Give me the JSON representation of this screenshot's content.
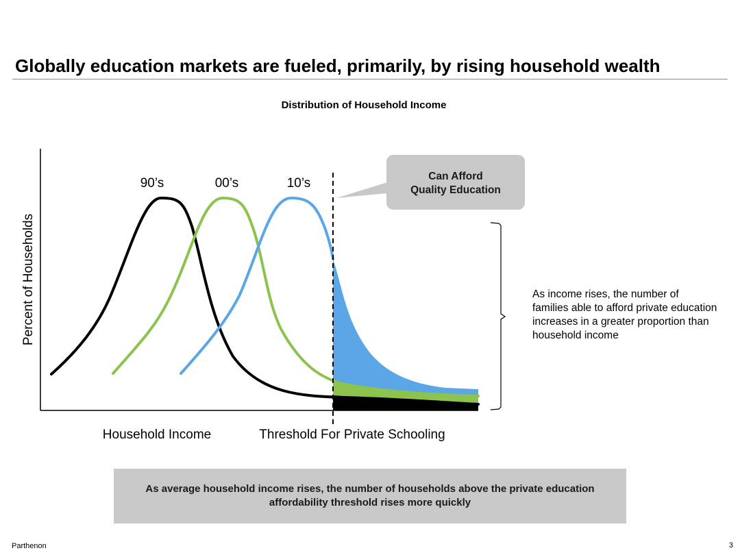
{
  "slide": {
    "title": "Globally education markets are fueled, primarily, by rising household wealth",
    "footer_left": "Parthenon",
    "page_number": "3"
  },
  "chart_data": {
    "type": "line",
    "title": "Distribution of Household Income",
    "xlabel": "Household Income",
    "ylabel": "Percent of Households",
    "threshold_label": "Threshold For Private Schooling",
    "series": [
      {
        "name": "90’s",
        "color": "#000000"
      },
      {
        "name": "00’s",
        "color": "#8cc34e"
      },
      {
        "name": "10’s",
        "color": "#5aa6e6"
      }
    ],
    "callout": {
      "line1": "Can Afford",
      "line2": "Quality Education"
    }
  },
  "annotation": {
    "text": "As income rises, the number of families able to afford private education increases in a greater proportion than household income"
  },
  "banner": {
    "text": "As average household income rises, the number of households above the private education affordability threshold rises more quickly"
  }
}
